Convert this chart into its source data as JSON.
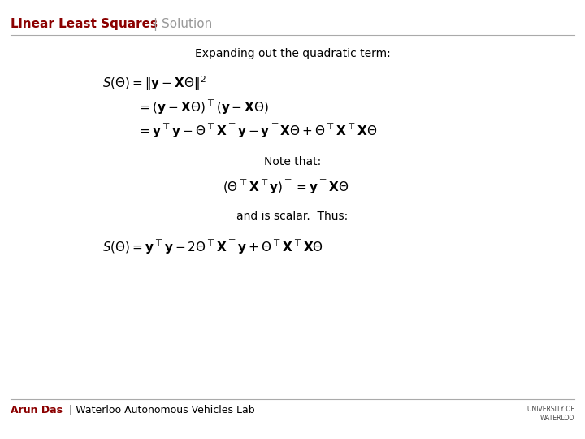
{
  "title_bold": "Linear Least Squares",
  "title_sep": "|",
  "title_light": " Solution",
  "title_color_bold": "#8B0000",
  "title_color_light": "#999999",
  "header_line_color": "#AAAAAA",
  "bg_color": "#FFFFFF",
  "text_color": "#000000",
  "footer_text_bold": "Arun Das",
  "footer_sep": " | ",
  "footer_text_light": "Waterloo Autonomous Vehicles Lab",
  "footer_color_bold": "#8B0000",
  "footer_color_light": "#000000",
  "subtitle": "Expanding out the quadratic term:",
  "note_text": "Note that:",
  "scalar_text": "and is scalar.  Thus:",
  "eq1_line1": "$S(\\Theta) = \\|\\mathbf{y} - \\mathbf{X}\\Theta\\|^2$",
  "eq1_line2": "$= (\\mathbf{y} - \\mathbf{X}\\Theta)^\\top(\\mathbf{y} - \\mathbf{X}\\Theta)$",
  "eq1_line3": "$= \\mathbf{y}^\\top\\mathbf{y} - \\Theta^\\top\\mathbf{X}^\\top\\mathbf{y} - \\mathbf{y}^\\top\\mathbf{X}\\Theta + \\Theta^\\top\\mathbf{X}^\\top\\mathbf{X}\\Theta$",
  "eq2": "$(\\Theta^\\top\\mathbf{X}^\\top\\mathbf{y})^\\top = \\mathbf{y}^\\top\\mathbf{X}\\Theta$",
  "eq3": "$S(\\Theta) = \\mathbf{y}^\\top\\mathbf{y} - 2\\Theta^\\top\\mathbf{X}^\\top\\mathbf{y} + \\Theta^\\top\\mathbf{X}^\\top\\mathbf{X}\\Theta$",
  "fontsize_title": 11,
  "fontsize_body": 10,
  "fontsize_eq": 11,
  "fontsize_footer": 9,
  "fig_width": 7.2,
  "fig_height": 5.4,
  "dpi": 100
}
